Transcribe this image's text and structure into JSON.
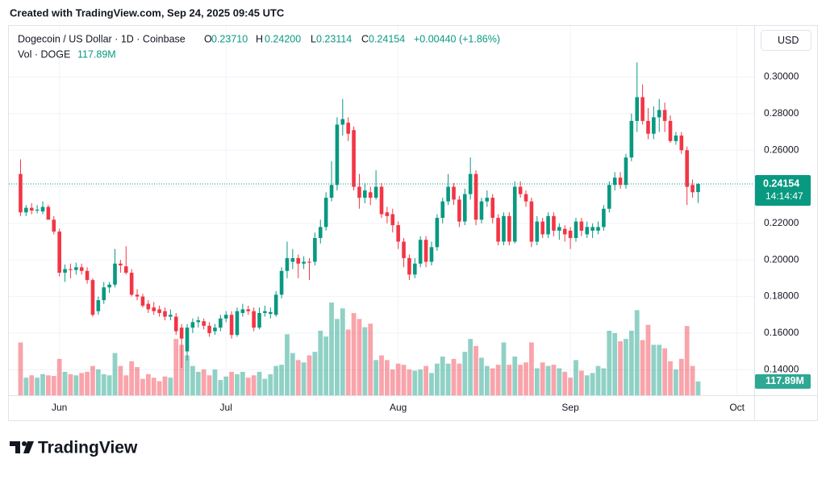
{
  "header": {
    "caption": "Created with TradingView.com, Sep 24, 2025 09:45 UTC",
    "brand": "TradingView"
  },
  "chart_data": {
    "type": "candlestick",
    "title": "Dogecoin / US Dollar · 1D · Coinbase",
    "ohlc_labels": [
      [
        "O",
        "0.23710"
      ],
      [
        "H",
        "0.24200"
      ],
      [
        "L",
        "0.23114"
      ],
      [
        "C",
        "0.24154"
      ]
    ],
    "change_label": "+0.00440 (+1.86%)",
    "volume_title": "Vol · DOGE",
    "volume_legend": "117.89M",
    "currency": "USD",
    "last_price_label": "0.24154",
    "countdown": "14:14:47",
    "last_volume_label": "117.89M",
    "up_color": "#089981",
    "down_color": "#f23645",
    "grid": true,
    "xlim": [
      -2.1,
      132.1
    ],
    "xticks": [
      {
        "value": 7,
        "label": "Jun"
      },
      {
        "value": 37,
        "label": "Jul"
      },
      {
        "value": 68,
        "label": "Aug"
      },
      {
        "value": 99,
        "label": "Sep"
      },
      {
        "value": 129,
        "label": "Oct"
      }
    ],
    "ylim": [
      0.126,
      0.328
    ],
    "yticks": [
      {
        "value": 0.14,
        "label": "0.14000"
      },
      {
        "value": 0.16,
        "label": "0.16000"
      },
      {
        "value": 0.18,
        "label": "0.18000"
      },
      {
        "value": 0.2,
        "label": "0.20000"
      },
      {
        "value": 0.22,
        "label": "0.22000"
      },
      {
        "value": 0.24,
        "label": "0.24000"
      },
      {
        "value": 0.26,
        "label": "0.26000"
      },
      {
        "value": 0.28,
        "label": "0.28000"
      },
      {
        "value": 0.3,
        "label": "0.30000"
      }
    ],
    "open": [
      0.247,
      0.226,
      0.2285,
      0.227,
      0.2265,
      0.229,
      0.222,
      0.2155,
      0.193,
      0.195,
      0.1945,
      0.196,
      0.194,
      0.189,
      0.172,
      0.178,
      0.185,
      0.1865,
      0.198,
      0.1965,
      0.193,
      0.181,
      0.18,
      0.176,
      0.174,
      0.173,
      0.172,
      0.169,
      0.169,
      0.163,
      0.15,
      0.163,
      0.166,
      0.1665,
      0.164,
      0.161,
      0.163,
      0.168,
      0.17,
      0.159,
      0.171,
      0.173,
      0.172,
      0.163,
      0.171,
      0.1705,
      0.17,
      0.181,
      0.194,
      0.199,
      0.201,
      0.198,
      0.199,
      0.199,
      0.212,
      0.218,
      0.234,
      0.241,
      0.274,
      0.275,
      0.271,
      0.24,
      0.234,
      0.237,
      0.234,
      0.24,
      0.226,
      0.225,
      0.219,
      0.21,
      0.201,
      0.192,
      0.198,
      0.211,
      0.199,
      0.207,
      0.223,
      0.232,
      0.24,
      0.233,
      0.221,
      0.236,
      0.247,
      0.222,
      0.232,
      0.234,
      0.223,
      0.21,
      0.224,
      0.21,
      0.24,
      0.236,
      0.232,
      0.21,
      0.221,
      0.214,
      0.224,
      0.216,
      0.217,
      0.216,
      0.212,
      0.221,
      0.214,
      0.216,
      0.216,
      0.218,
      0.228,
      0.241,
      0.245,
      0.241,
      0.256,
      0.276,
      0.289,
      0.276,
      0.269,
      0.278,
      0.282,
      0.276,
      0.265,
      0.268,
      0.26,
      0.241,
      0.2371
    ],
    "high": [
      0.255,
      0.23,
      0.231,
      0.23,
      0.232,
      0.23,
      0.224,
      0.217,
      0.1975,
      0.198,
      0.1985,
      0.198,
      0.196,
      0.19,
      0.18,
      0.188,
      0.188,
      0.206,
      0.2,
      0.2075,
      0.195,
      0.184,
      0.1815,
      0.178,
      0.177,
      0.175,
      0.174,
      0.173,
      0.171,
      0.165,
      0.165,
      0.168,
      0.169,
      0.168,
      0.166,
      0.165,
      0.17,
      0.172,
      0.172,
      0.174,
      0.176,
      0.175,
      0.174,
      0.174,
      0.175,
      0.174,
      0.183,
      0.196,
      0.21,
      0.206,
      0.203,
      0.202,
      0.201,
      0.215,
      0.222,
      0.237,
      0.254,
      0.278,
      0.288,
      0.278,
      0.273,
      0.247,
      0.242,
      0.24,
      0.249,
      0.242,
      0.229,
      0.228,
      0.221,
      0.212,
      0.203,
      0.201,
      0.213,
      0.213,
      0.21,
      0.225,
      0.234,
      0.247,
      0.242,
      0.235,
      0.239,
      0.256,
      0.249,
      0.234,
      0.238,
      0.236,
      0.225,
      0.226,
      0.226,
      0.243,
      0.243,
      0.238,
      0.234,
      0.224,
      0.223,
      0.226,
      0.226,
      0.22,
      0.219,
      0.218,
      0.223,
      0.223,
      0.221,
      0.22,
      0.221,
      0.23,
      0.243,
      0.248,
      0.248,
      0.258,
      0.28,
      0.308,
      0.296,
      0.283,
      0.284,
      0.288,
      0.286,
      0.279,
      0.27,
      0.27,
      0.262,
      0.244,
      0.242
    ],
    "low": [
      0.224,
      0.224,
      0.225,
      0.2255,
      0.225,
      0.223,
      0.214,
      0.191,
      0.188,
      0.19,
      0.192,
      0.192,
      0.187,
      0.169,
      0.17,
      0.176,
      0.182,
      0.185,
      0.193,
      0.192,
      0.18,
      0.178,
      0.174,
      0.171,
      0.17,
      0.169,
      0.167,
      0.167,
      0.159,
      0.141,
      0.145,
      0.16,
      0.163,
      0.162,
      0.158,
      0.159,
      0.161,
      0.166,
      0.157,
      0.158,
      0.169,
      0.17,
      0.161,
      0.162,
      0.169,
      0.168,
      0.169,
      0.179,
      0.19,
      0.195,
      0.19,
      0.195,
      0.189,
      0.197,
      0.209,
      0.216,
      0.232,
      0.238,
      0.268,
      0.265,
      0.238,
      0.228,
      0.231,
      0.23,
      0.233,
      0.223,
      0.22,
      0.215,
      0.206,
      0.196,
      0.189,
      0.19,
      0.196,
      0.196,
      0.197,
      0.205,
      0.22,
      0.23,
      0.23,
      0.218,
      0.219,
      0.233,
      0.219,
      0.22,
      0.229,
      0.22,
      0.208,
      0.208,
      0.208,
      0.209,
      0.234,
      0.229,
      0.207,
      0.208,
      0.212,
      0.212,
      0.213,
      0.211,
      0.21,
      0.206,
      0.21,
      0.213,
      0.212,
      0.212,
      0.214,
      0.216,
      0.226,
      0.238,
      0.239,
      0.239,
      0.254,
      0.27,
      0.274,
      0.266,
      0.266,
      0.27,
      0.27,
      0.264,
      0.263,
      0.258,
      0.23,
      0.234,
      0.23114
    ],
    "close": [
      0.226,
      0.2285,
      0.227,
      0.2275,
      0.229,
      0.222,
      0.2155,
      0.193,
      0.195,
      0.1945,
      0.196,
      0.194,
      0.189,
      0.17,
      0.178,
      0.185,
      0.1865,
      0.198,
      0.197,
      0.193,
      0.181,
      0.18,
      0.175,
      0.173,
      0.172,
      0.171,
      0.169,
      0.17,
      0.161,
      0.157,
      0.163,
      0.166,
      0.167,
      0.164,
      0.16,
      0.163,
      0.168,
      0.17,
      0.159,
      0.172,
      0.173,
      0.172,
      0.163,
      0.171,
      0.172,
      0.1715,
      0.181,
      0.194,
      0.201,
      0.201,
      0.198,
      0.199,
      0.1985,
      0.212,
      0.218,
      0.234,
      0.241,
      0.274,
      0.277,
      0.269,
      0.24,
      0.234,
      0.238,
      0.234,
      0.24,
      0.225,
      0.224,
      0.219,
      0.21,
      0.201,
      0.192,
      0.198,
      0.211,
      0.199,
      0.207,
      0.223,
      0.232,
      0.24,
      0.233,
      0.221,
      0.236,
      0.247,
      0.222,
      0.232,
      0.234,
      0.223,
      0.21,
      0.224,
      0.21,
      0.24,
      0.236,
      0.232,
      0.21,
      0.221,
      0.214,
      0.224,
      0.216,
      0.218,
      0.214,
      0.212,
      0.221,
      0.216,
      0.218,
      0.218,
      0.218,
      0.228,
      0.241,
      0.245,
      0.241,
      0.256,
      0.276,
      0.289,
      0.276,
      0.269,
      0.278,
      0.282,
      0.276,
      0.265,
      0.268,
      0.26,
      0.24,
      0.237,
      0.24154
    ],
    "volume": [
      450,
      150,
      170,
      150,
      180,
      170,
      165,
      310,
      200,
      180,
      170,
      190,
      200,
      250,
      220,
      180,
      170,
      360,
      250,
      170,
      290,
      240,
      140,
      180,
      150,
      120,
      160,
      150,
      480,
      430,
      340,
      250,
      200,
      220,
      170,
      220,
      130,
      160,
      200,
      180,
      200,
      150,
      170,
      200,
      140,
      180,
      250,
      260,
      520,
      360,
      300,
      280,
      340,
      370,
      550,
      500,
      790,
      650,
      740,
      560,
      700,
      650,
      580,
      610,
      300,
      340,
      300,
      220,
      270,
      260,
      220,
      210,
      220,
      250,
      190,
      270,
      330,
      270,
      310,
      270,
      370,
      480,
      420,
      320,
      250,
      230,
      260,
      450,
      260,
      330,
      260,
      280,
      450,
      230,
      280,
      250,
      260,
      230,
      200,
      150,
      300,
      210,
      170,
      190,
      250,
      230,
      550,
      530,
      460,
      480,
      550,
      725,
      470,
      600,
      430,
      430,
      400,
      290,
      220,
      310,
      590,
      250,
      117.89
    ]
  }
}
